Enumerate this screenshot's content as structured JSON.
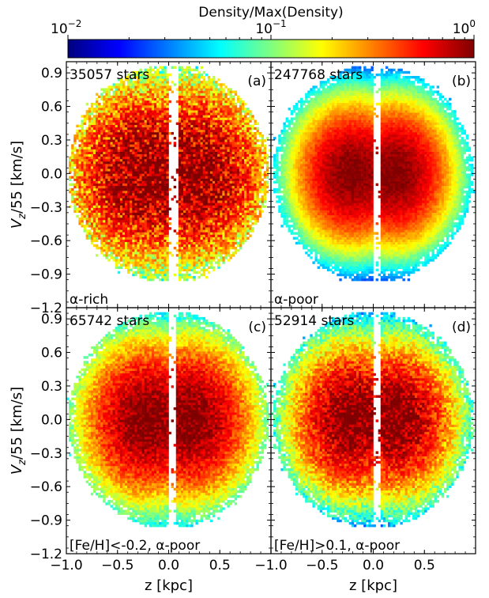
{
  "colorbar": {
    "title": "Density/Max(Density)",
    "scale": "log",
    "range": [
      0.01,
      1
    ],
    "ticks": [
      {
        "value": 0.01,
        "base": "10",
        "exp": "−2"
      },
      {
        "value": 0.1,
        "base": "10",
        "exp": "−1"
      },
      {
        "value": 1,
        "base": "10",
        "exp": "0"
      }
    ],
    "colormap": [
      "#00007f",
      "#0000ff",
      "#007fff",
      "#00ffff",
      "#7fff7f",
      "#ffff00",
      "#ff7f00",
      "#ff0000",
      "#7f0000"
    ]
  },
  "chart_data": [
    {
      "id": "a",
      "type": "heatmap",
      "count_label": "35057 stars",
      "panel_label": "(a)",
      "sample_label": "α-rich",
      "xlabel": "",
      "ylabel": "V_z/55 [km/s]",
      "xlim": [
        -1.0,
        1.0
      ],
      "ylim": [
        -1.2,
        1.0
      ],
      "distribution": {
        "center_y": 0.0,
        "center_x_abs": 0.2,
        "spread_x": 0.45,
        "spread_y": 0.45,
        "floor": 0.03,
        "density_noise": 0.6,
        "gap_half_width": 0.05
      }
    },
    {
      "id": "b",
      "type": "heatmap",
      "count_label": "247768 stars",
      "panel_label": "(b)",
      "sample_label": "α-poor",
      "xlabel": "",
      "ylabel": "",
      "xlim": [
        -1.0,
        1.0
      ],
      "ylim": [
        -1.2,
        1.0
      ],
      "distribution": {
        "center_y": 0.0,
        "center_x_abs": 0.2,
        "spread_x": 0.32,
        "spread_y": 0.36,
        "floor": 0.01,
        "density_noise": 0.15,
        "gap_half_width": 0.04
      }
    },
    {
      "id": "c",
      "type": "heatmap",
      "count_label": "65742 stars",
      "panel_label": "(c)",
      "sample_label": "[Fe/H]<-0.2, α-poor",
      "xlabel": "z [kpc]",
      "ylabel": "V_z/55 [km/s]",
      "xlim": [
        -1.0,
        1.0
      ],
      "ylim": [
        -1.2,
        1.0
      ],
      "distribution": {
        "center_y": 0.0,
        "center_x_abs": 0.2,
        "spread_x": 0.36,
        "spread_y": 0.4,
        "floor": 0.02,
        "density_noise": 0.3,
        "gap_half_width": 0.04
      }
    },
    {
      "id": "d",
      "type": "heatmap",
      "count_label": "52914 stars",
      "panel_label": "(d)",
      "sample_label": "[Fe/H]>0.1, α-poor",
      "xlabel": "z [kpc]",
      "ylabel": "",
      "xlim": [
        -1.0,
        1.0
      ],
      "ylim": [
        -1.2,
        1.0
      ],
      "distribution": {
        "center_y": 0.0,
        "center_x_abs": 0.2,
        "spread_x": 0.34,
        "spread_y": 0.38,
        "floor": 0.01,
        "density_noise": 0.4,
        "gap_half_width": 0.04
      }
    }
  ],
  "axes": {
    "y_ticks": [
      {
        "value": 0.9,
        "label": "0.9"
      },
      {
        "value": 0.6,
        "label": "0.6"
      },
      {
        "value": 0.3,
        "label": "0.3"
      },
      {
        "value": 0.0,
        "label": "0.0"
      },
      {
        "value": -0.3,
        "label": "−0.3"
      },
      {
        "value": -0.6,
        "label": "−0.6"
      },
      {
        "value": -0.9,
        "label": "−0.9"
      },
      {
        "value": -1.2,
        "label": "−1.2"
      }
    ],
    "x_ticks": [
      {
        "value": -1.0,
        "label": "−1.0"
      },
      {
        "value": -0.5,
        "label": "−0.5"
      },
      {
        "value": 0.0,
        "label": "0.0"
      },
      {
        "value": 0.5,
        "label": "0.5"
      }
    ]
  }
}
